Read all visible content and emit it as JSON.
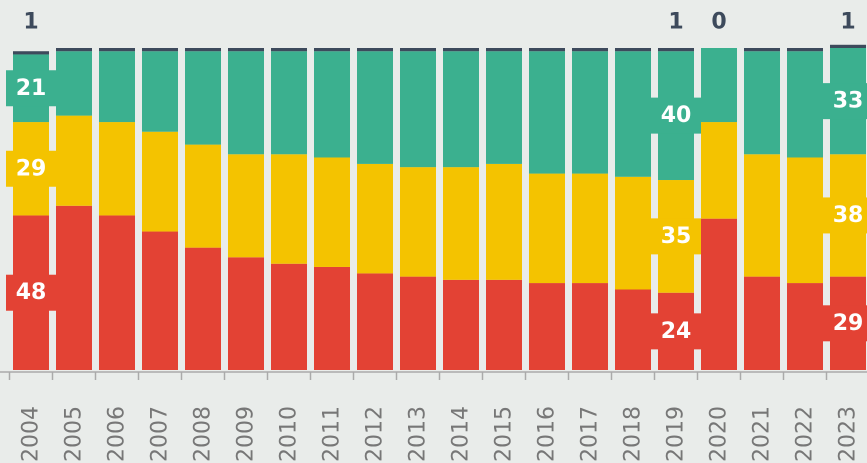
{
  "chart_data": {
    "type": "stacked_bar",
    "categories": [
      "2004",
      "2005",
      "2006",
      "2007",
      "2008",
      "2009",
      "2010",
      "2011",
      "2012",
      "2013",
      "2014",
      "2015",
      "2016",
      "2017",
      "2018",
      "2019",
      "2020",
      "2021",
      "2022",
      "2023"
    ],
    "ylim": [
      0,
      100
    ],
    "series": [
      {
        "color": "#e34234",
        "values": [
          48,
          51,
          48,
          43,
          38,
          35,
          33,
          32,
          30,
          29,
          28,
          28,
          27,
          27,
          25,
          24,
          47,
          29,
          27,
          29
        ],
        "value_labels": [
          "48",
          null,
          null,
          null,
          null,
          null,
          null,
          null,
          null,
          null,
          null,
          null,
          null,
          null,
          null,
          "24",
          null,
          null,
          null,
          "29"
        ]
      },
      {
        "color": "#f4c300",
        "values": [
          29,
          28,
          29,
          31,
          32,
          32,
          34,
          34,
          34,
          34,
          35,
          36,
          34,
          34,
          35,
          35,
          30,
          38,
          39,
          38
        ],
        "value_labels": [
          "29",
          null,
          null,
          null,
          null,
          null,
          null,
          null,
          null,
          null,
          null,
          null,
          null,
          null,
          null,
          "35",
          null,
          null,
          null,
          "38"
        ]
      },
      {
        "color": "#3bb08f",
        "values": [
          21,
          20,
          22,
          25,
          29,
          32,
          32,
          33,
          35,
          36,
          36,
          35,
          38,
          38,
          39,
          40,
          23,
          32,
          33,
          33
        ],
        "value_labels": [
          "21",
          null,
          null,
          null,
          null,
          null,
          null,
          null,
          null,
          null,
          null,
          null,
          null,
          null,
          null,
          "40",
          null,
          null,
          null,
          "33"
        ]
      },
      {
        "color": "#3d4a5c",
        "values": [
          1,
          1,
          1,
          1,
          1,
          1,
          1,
          1,
          1,
          1,
          1,
          1,
          1,
          1,
          1,
          1,
          0,
          1,
          1,
          1
        ],
        "value_labels": [
          "1",
          null,
          null,
          null,
          null,
          null,
          null,
          null,
          null,
          null,
          null,
          null,
          null,
          null,
          null,
          "1",
          "0",
          null,
          null,
          "1"
        ]
      }
    ]
  }
}
